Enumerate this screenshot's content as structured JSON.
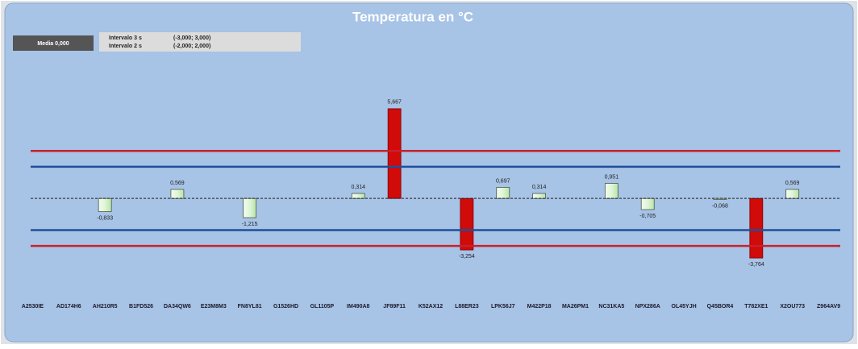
{
  "chart_data": {
    "type": "bar",
    "title": "Temperatura en °C",
    "mean_label": "Media 0,000",
    "interval_names": [
      "Intervalo 3 s",
      "Intervalo 2 s"
    ],
    "interval_ranges": [
      "(-3,000; 3,000)",
      "(-2,000; 2,000)"
    ],
    "categories": [
      "A2530IE",
      "AD174H6",
      "AH210R5",
      "B1FD526",
      "DA34QW6",
      "E23M8M3",
      "FN8YL81",
      "G1526HD",
      "GL1105P",
      "IM490A8",
      "JF89F11",
      "K52AX12",
      "L88ER23",
      "LPK56J7",
      "M422P18",
      "MA26PM1",
      "NC31KA5",
      "NPX286A",
      "OL45YJH",
      "Q45BOR4",
      "T782XE1",
      "X2OU773",
      "Z964AV9"
    ],
    "values": [
      null,
      null,
      -0.833,
      null,
      0.569,
      null,
      -1.215,
      null,
      null,
      0.314,
      5.667,
      null,
      -3.254,
      0.697,
      0.314,
      null,
      0.951,
      -0.705,
      null,
      -0.068,
      -3.764,
      0.569,
      null
    ],
    "value_labels": [
      null,
      null,
      "-0,833",
      null,
      "0,569",
      null,
      "-1,215",
      null,
      null,
      "0,314",
      "5,667",
      null,
      "-3,254",
      "0,697",
      "0,314",
      null,
      "0,951",
      "-0,705",
      null,
      "-0,068",
      "-3,764",
      "0,569",
      null
    ],
    "color": "#dff5d6",
    "highlight_color": "#d10a0a",
    "ylim": [
      -6,
      10.5
    ],
    "reference_lines": [
      {
        "value": 3,
        "color": "#c8202c"
      },
      {
        "value": -3,
        "color": "#c8202c"
      },
      {
        "value": 2,
        "color": "#1f4f9a"
      },
      {
        "value": -2,
        "color": "#1f4f9a"
      }
    ],
    "mean_line": 0
  }
}
